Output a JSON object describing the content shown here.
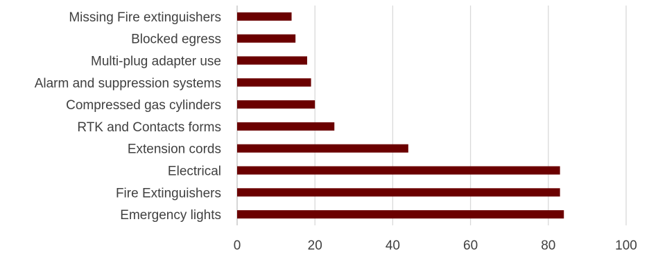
{
  "chart_data": {
    "type": "bar",
    "orientation": "horizontal",
    "categories": [
      "Missing Fire extinguishers",
      "Blocked egress",
      "Multi-plug adapter use",
      "Alarm and suppression systems",
      "Compressed gas cylinders",
      "RTK and Contacts forms",
      "Extension cords",
      "Electrical",
      "Fire Extinguishers",
      "Emergency lights"
    ],
    "values": [
      14,
      15,
      18,
      19,
      20,
      25,
      44,
      83,
      83,
      84
    ],
    "xlim": [
      0,
      100
    ],
    "xticks": [
      "0",
      "20",
      "40",
      "60",
      "80",
      "100"
    ],
    "grid": "vertical",
    "bar_color": "#6b0000",
    "title": "",
    "xlabel": "",
    "ylabel": ""
  }
}
